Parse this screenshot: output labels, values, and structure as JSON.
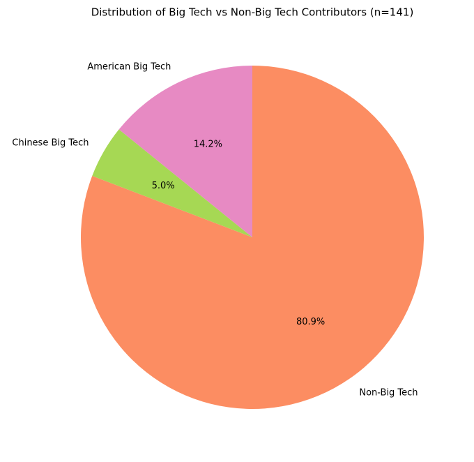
{
  "chart_data": {
    "type": "pie",
    "title": "Distribution of Big Tech vs Non-Big Tech Contributors (n=141)",
    "categories": [
      "Non-Big Tech",
      "Chinese Big Tech",
      "American Big Tech"
    ],
    "values": [
      80.9,
      5.0,
      14.2
    ],
    "value_labels": [
      "80.9%",
      "5.0%",
      "14.2%"
    ],
    "colors": [
      "#fc8d62",
      "#a6d854",
      "#e78ac3"
    ]
  }
}
